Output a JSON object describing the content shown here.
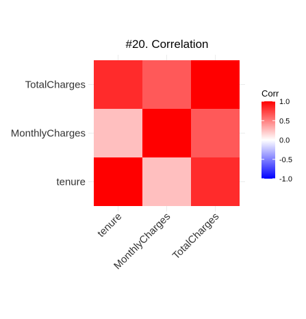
{
  "chart_data": {
    "type": "heatmap",
    "title": "#20. Correlation",
    "x_categories": [
      "tenure",
      "MonthlyCharges",
      "TotalCharges"
    ],
    "y_categories": [
      "tenure",
      "MonthlyCharges",
      "TotalCharges"
    ],
    "matrix": [
      [
        1.0,
        0.25,
        0.83
      ],
      [
        0.25,
        1.0,
        0.65
      ],
      [
        0.83,
        0.65,
        1.0
      ]
    ],
    "color_scale": {
      "low": "#0000ff",
      "mid": "#ffffff",
      "high": "#ff0000",
      "limits": [
        -1,
        1
      ]
    },
    "legend": {
      "title": "Corr",
      "ticks": [
        "1.0",
        "0.5",
        "0.0",
        "-0.5",
        "-1.0"
      ],
      "tick_values": [
        1.0,
        0.5,
        0.0,
        -0.5,
        -1.0
      ],
      "position": "right"
    },
    "grid": true
  }
}
